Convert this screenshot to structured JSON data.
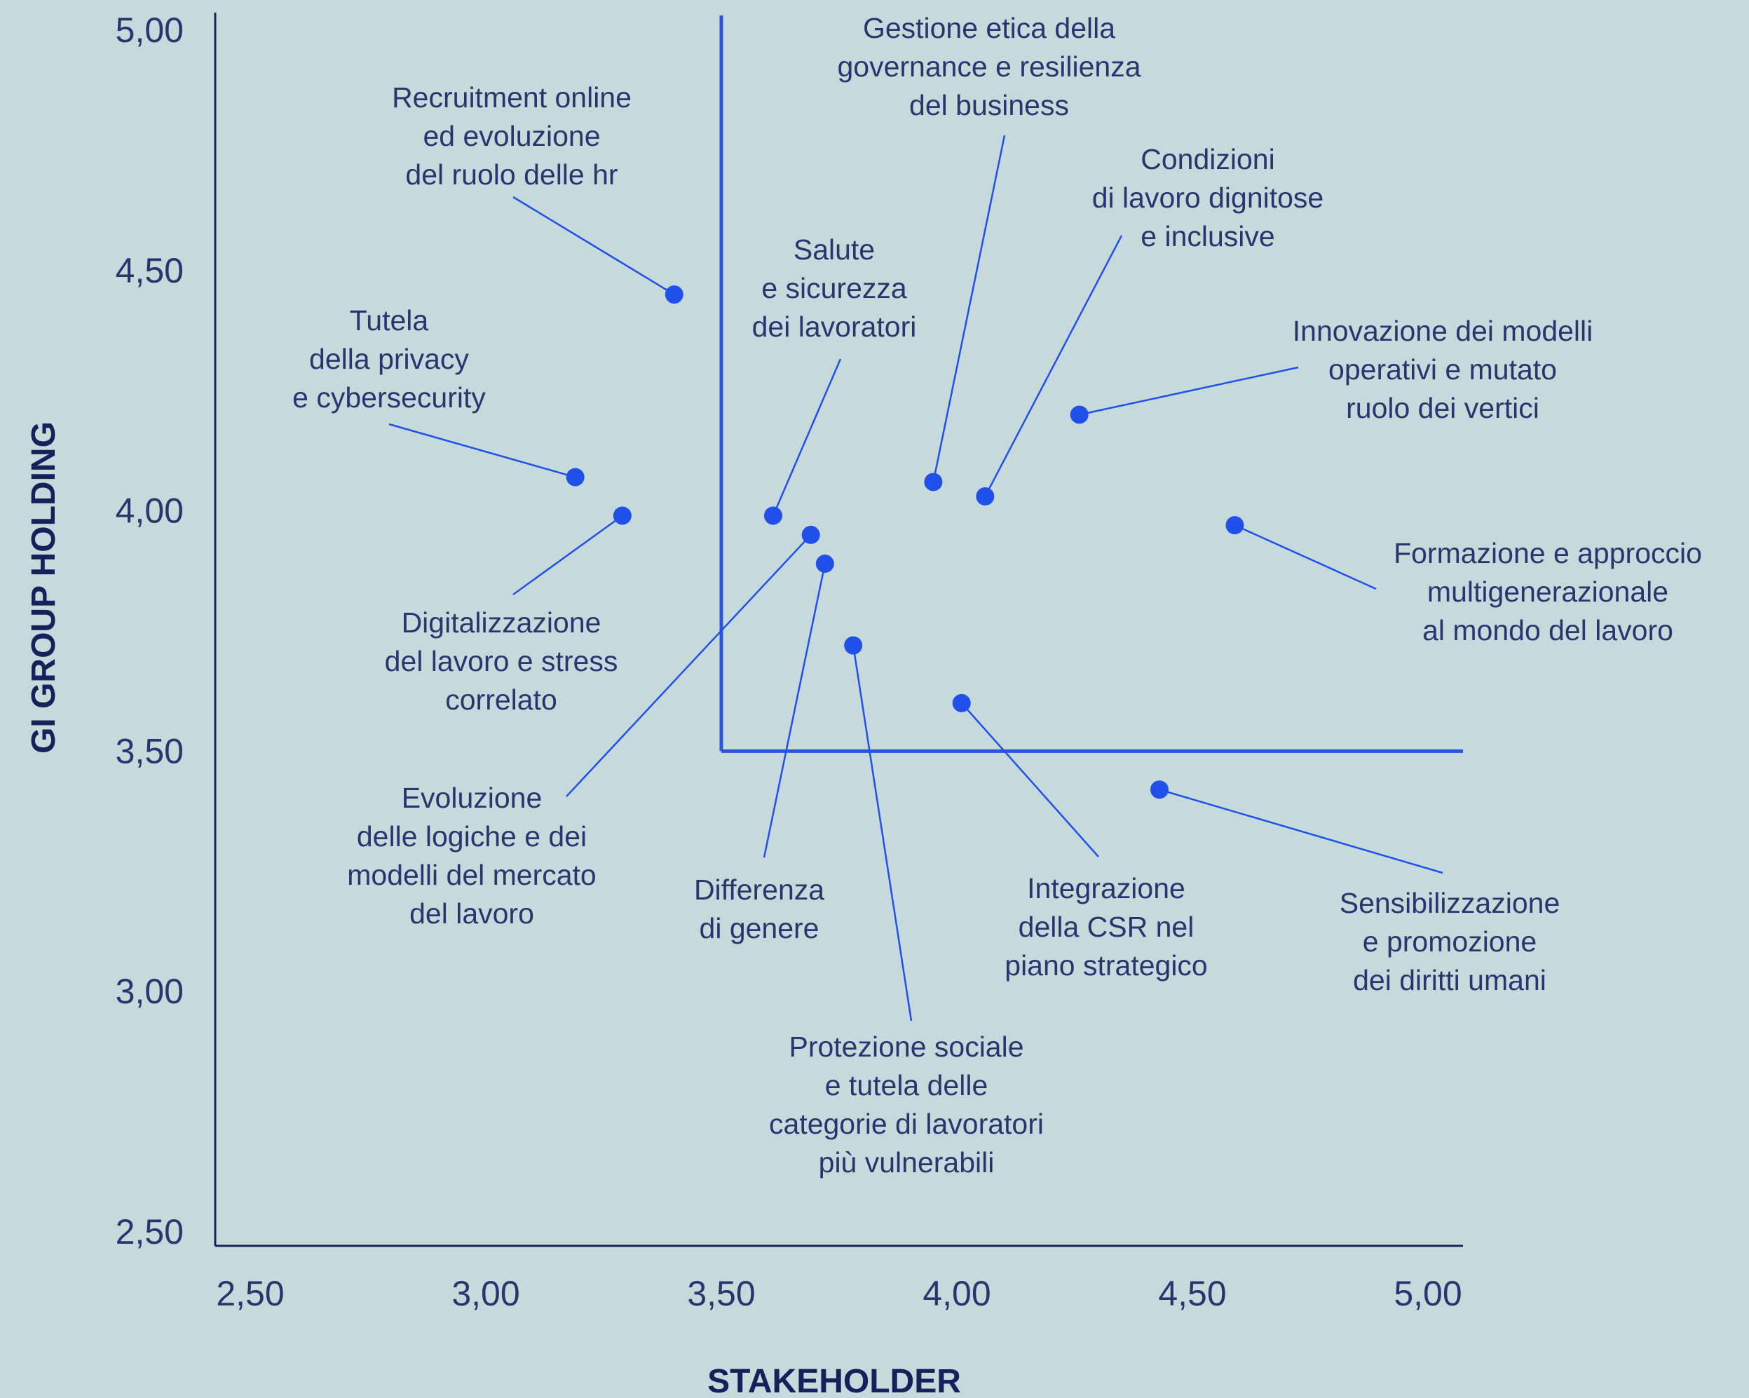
{
  "chart_data": {
    "type": "scatter",
    "xlabel": "STAKEHOLDER",
    "ylabel": "GI GROUP HOLDING",
    "xlim": [
      2.5,
      5.0
    ],
    "ylim": [
      2.5,
      5.0
    ],
    "x_ticks": [
      "2,50",
      "3,00",
      "3,50",
      "4,00",
      "4,50",
      "5,00"
    ],
    "y_ticks": [
      "2,50",
      "3,00",
      "3,50",
      "4,00",
      "4,50",
      "5,00"
    ],
    "threshold": {
      "x": 3.5,
      "y": 3.5
    },
    "colors": {
      "point": "#1f50ea",
      "threshold": "#2b55de",
      "axis": "#1a2560",
      "text": "#2a3570"
    },
    "points": [
      {
        "x": 3.4,
        "y": 4.45,
        "label": [
          "Recruitment online",
          "ed evoluzione",
          "del ruolo delle hr"
        ]
      },
      {
        "x": 3.19,
        "y": 4.07,
        "label": [
          "Tutela",
          "della privacy",
          "e cybersecurity"
        ]
      },
      {
        "x": 3.29,
        "y": 3.99,
        "label": [
          "Digitalizzazione",
          "del lavoro e stress",
          "correlato"
        ]
      },
      {
        "x": 3.61,
        "y": 3.99,
        "label": [
          "Salute",
          "e sicurezza",
          "dei lavoratori"
        ]
      },
      {
        "x": 3.69,
        "y": 3.95,
        "label": [
          "Evoluzione",
          "delle logiche e dei",
          "modelli del mercato",
          "del lavoro"
        ]
      },
      {
        "x": 3.72,
        "y": 3.89,
        "label": [
          "Differenza",
          "di genere"
        ]
      },
      {
        "x": 3.78,
        "y": 3.72,
        "label": [
          "Protezione sociale",
          "e tutela delle",
          "categorie di lavoratori",
          "più vulnerabili"
        ]
      },
      {
        "x": 3.95,
        "y": 4.06,
        "label": [
          "Gestione etica della",
          "governance e resilienza",
          "del business"
        ]
      },
      {
        "x": 4.06,
        "y": 4.03,
        "label": [
          "Condizioni",
          "di lavoro dignitose",
          "e inclusive"
        ]
      },
      {
        "x": 4.01,
        "y": 3.6,
        "label": [
          "Integrazione",
          "della CSR nel",
          "piano strategico"
        ]
      },
      {
        "x": 4.26,
        "y": 4.2,
        "label": [
          "Innovazione dei modelli",
          "operativi e mutato",
          "ruolo dei vertici"
        ]
      },
      {
        "x": 4.59,
        "y": 3.97,
        "label": [
          "Formazione e approccio",
          "multigenerazionale",
          "al mondo del lavoro"
        ]
      },
      {
        "x": 4.43,
        "y": 3.42,
        "label": [
          "Sensibilizzazione",
          "e promozione",
          "dei diritti umani"
        ]
      }
    ]
  }
}
